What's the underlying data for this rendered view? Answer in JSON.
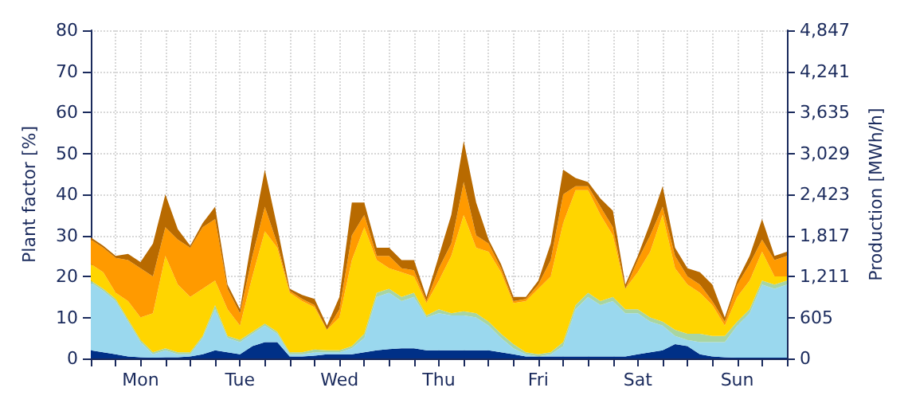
{
  "chart_data": {
    "type": "area",
    "stacked": true,
    "ylabel": "Plant factor [%]",
    "y2label": "Production [MWh/h]",
    "categories": [
      null,
      null,
      null,
      null,
      "Mon",
      null,
      null,
      null,
      null,
      null,
      null,
      null,
      "Tue",
      null,
      null,
      null,
      null,
      null,
      null,
      null,
      "Wed",
      null,
      null,
      null,
      null,
      null,
      null,
      null,
      "Thu",
      null,
      null,
      null,
      null,
      null,
      null,
      null,
      "Fri",
      null,
      null,
      null,
      null,
      null,
      null,
      null,
      "Sat",
      null,
      null,
      null,
      null,
      null,
      null,
      null,
      "Sun",
      null,
      null,
      null,
      null
    ],
    "series": [
      {
        "color": "#003087",
        "values": [
          2,
          1.5,
          1,
          0.5,
          0.3,
          0.2,
          0.3,
          0.3,
          0.5,
          1,
          2,
          1.5,
          1,
          3,
          4,
          4,
          0.5,
          0.5,
          0.7,
          1,
          1,
          1,
          1.5,
          2,
          2.3,
          2.5,
          2.5,
          2,
          2,
          2,
          2,
          2,
          2,
          1.5,
          1,
          0.5,
          0.5,
          0.5,
          0.5,
          0.5,
          0.5,
          0.5,
          0.5,
          0.5,
          1,
          1.5,
          2,
          3.5,
          3,
          1,
          0.5,
          0.3,
          0.2,
          0.2,
          0.2,
          0.2,
          0.2
        ]
      },
      {
        "color": "#9ad8ee",
        "values": [
          16.5,
          15,
          13,
          8.5,
          3.7,
          0.8,
          1.7,
          0.7,
          0.5,
          4,
          10,
          3.5,
          3,
          3,
          4,
          2,
          0.5,
          0.5,
          0.8,
          0.5,
          0.5,
          1.5,
          3.5,
          13,
          13.7,
          11.5,
          12.5,
          8,
          9,
          8.5,
          8.5,
          8,
          6,
          3.5,
          1.5,
          0.5,
          0,
          0.5,
          2.5,
          11.5,
          14.5,
          12.5,
          13.5,
          10.5,
          10,
          7.5,
          6,
          2,
          1.5,
          3,
          3.5,
          3.7,
          7.8,
          10.8,
          17.8,
          16.8,
          17.8
        ]
      },
      {
        "color": "#a8d5a2",
        "values": [
          0.5,
          0.5,
          0.5,
          0.5,
          0.5,
          0.5,
          0.5,
          0.5,
          0.5,
          0.5,
          1,
          0.5,
          0.5,
          0.5,
          0.5,
          0.5,
          0.5,
          0.5,
          0.7,
          0.5,
          0.5,
          0.5,
          1,
          1,
          1,
          1,
          1,
          0.5,
          1,
          0.5,
          1,
          1,
          1,
          1,
          1,
          0.5,
          0.5,
          0.5,
          1,
          1,
          1,
          1,
          1,
          1,
          1,
          1,
          1,
          1.5,
          1.5,
          2,
          1.5,
          1.5,
          1,
          1,
          1,
          1,
          1
        ]
      },
      {
        "color": "#ffd500",
        "values": [
          4,
          4,
          1.5,
          4.5,
          5.5,
          9.5,
          22.5,
          16.5,
          13.5,
          11.5,
          6,
          6.5,
          3.5,
          13.5,
          22.5,
          20.5,
          14.5,
          12.5,
          10.3,
          5,
          8,
          21,
          26,
          8,
          5,
          6,
          4,
          3,
          7,
          14,
          23.5,
          16,
          17,
          15,
          10,
          12.5,
          16,
          18.5,
          29,
          28,
          25,
          21,
          15,
          5,
          9,
          16,
          26,
          15,
          12,
          10,
          7.5,
          2.5,
          6,
          7,
          7,
          2,
          1
        ]
      },
      {
        "color": "#ff9a00",
        "values": [
          6,
          6,
          8.5,
          10,
          12,
          9,
          7,
          11,
          12,
          15,
          15,
          5,
          3,
          5,
          6,
          1,
          0.5,
          0.5,
          0.5,
          0,
          2,
          6,
          3,
          1,
          3,
          1,
          1.5,
          0.5,
          3,
          3,
          8,
          3,
          2,
          1,
          0.5,
          0.5,
          1,
          4,
          7,
          1,
          1,
          2,
          2,
          0,
          3,
          4,
          2,
          3,
          2,
          2,
          1,
          1,
          3,
          4,
          3,
          4,
          5
        ]
      },
      {
        "color": "#b86a00",
        "values": [
          0.5,
          0.5,
          0.5,
          1.5,
          1.5,
          8,
          8,
          2.5,
          0.5,
          1,
          3,
          1,
          1,
          5,
          9,
          4,
          0.5,
          1,
          1.5,
          1,
          3,
          8,
          3,
          2,
          2,
          2,
          2.5,
          1,
          3,
          7,
          10,
          8,
          1,
          1,
          1,
          0.5,
          1,
          4,
          6,
          2,
          1,
          2,
          4,
          1,
          1,
          3,
          5,
          2,
          2,
          3,
          4,
          1,
          1,
          2,
          5,
          1,
          1
        ]
      }
    ],
    "ylim": [
      0,
      80
    ],
    "yticks": [
      0,
      10,
      20,
      30,
      40,
      50,
      60,
      70,
      80
    ],
    "y2lim": [
      0,
      4847
    ],
    "y2ticks": [
      0,
      605,
      {
        "value": 1211,
        "label": "1,211"
      },
      {
        "value": 1817,
        "label": "1,817"
      },
      {
        "value": 2423,
        "label": "2,423"
      },
      {
        "value": 3029,
        "label": "3,029"
      },
      {
        "value": 3635,
        "label": "3,635"
      },
      {
        "value": 4241,
        "label": "4,241"
      },
      {
        "value": 4847,
        "label": "4,847"
      }
    ],
    "grid": true,
    "marker": "none"
  }
}
